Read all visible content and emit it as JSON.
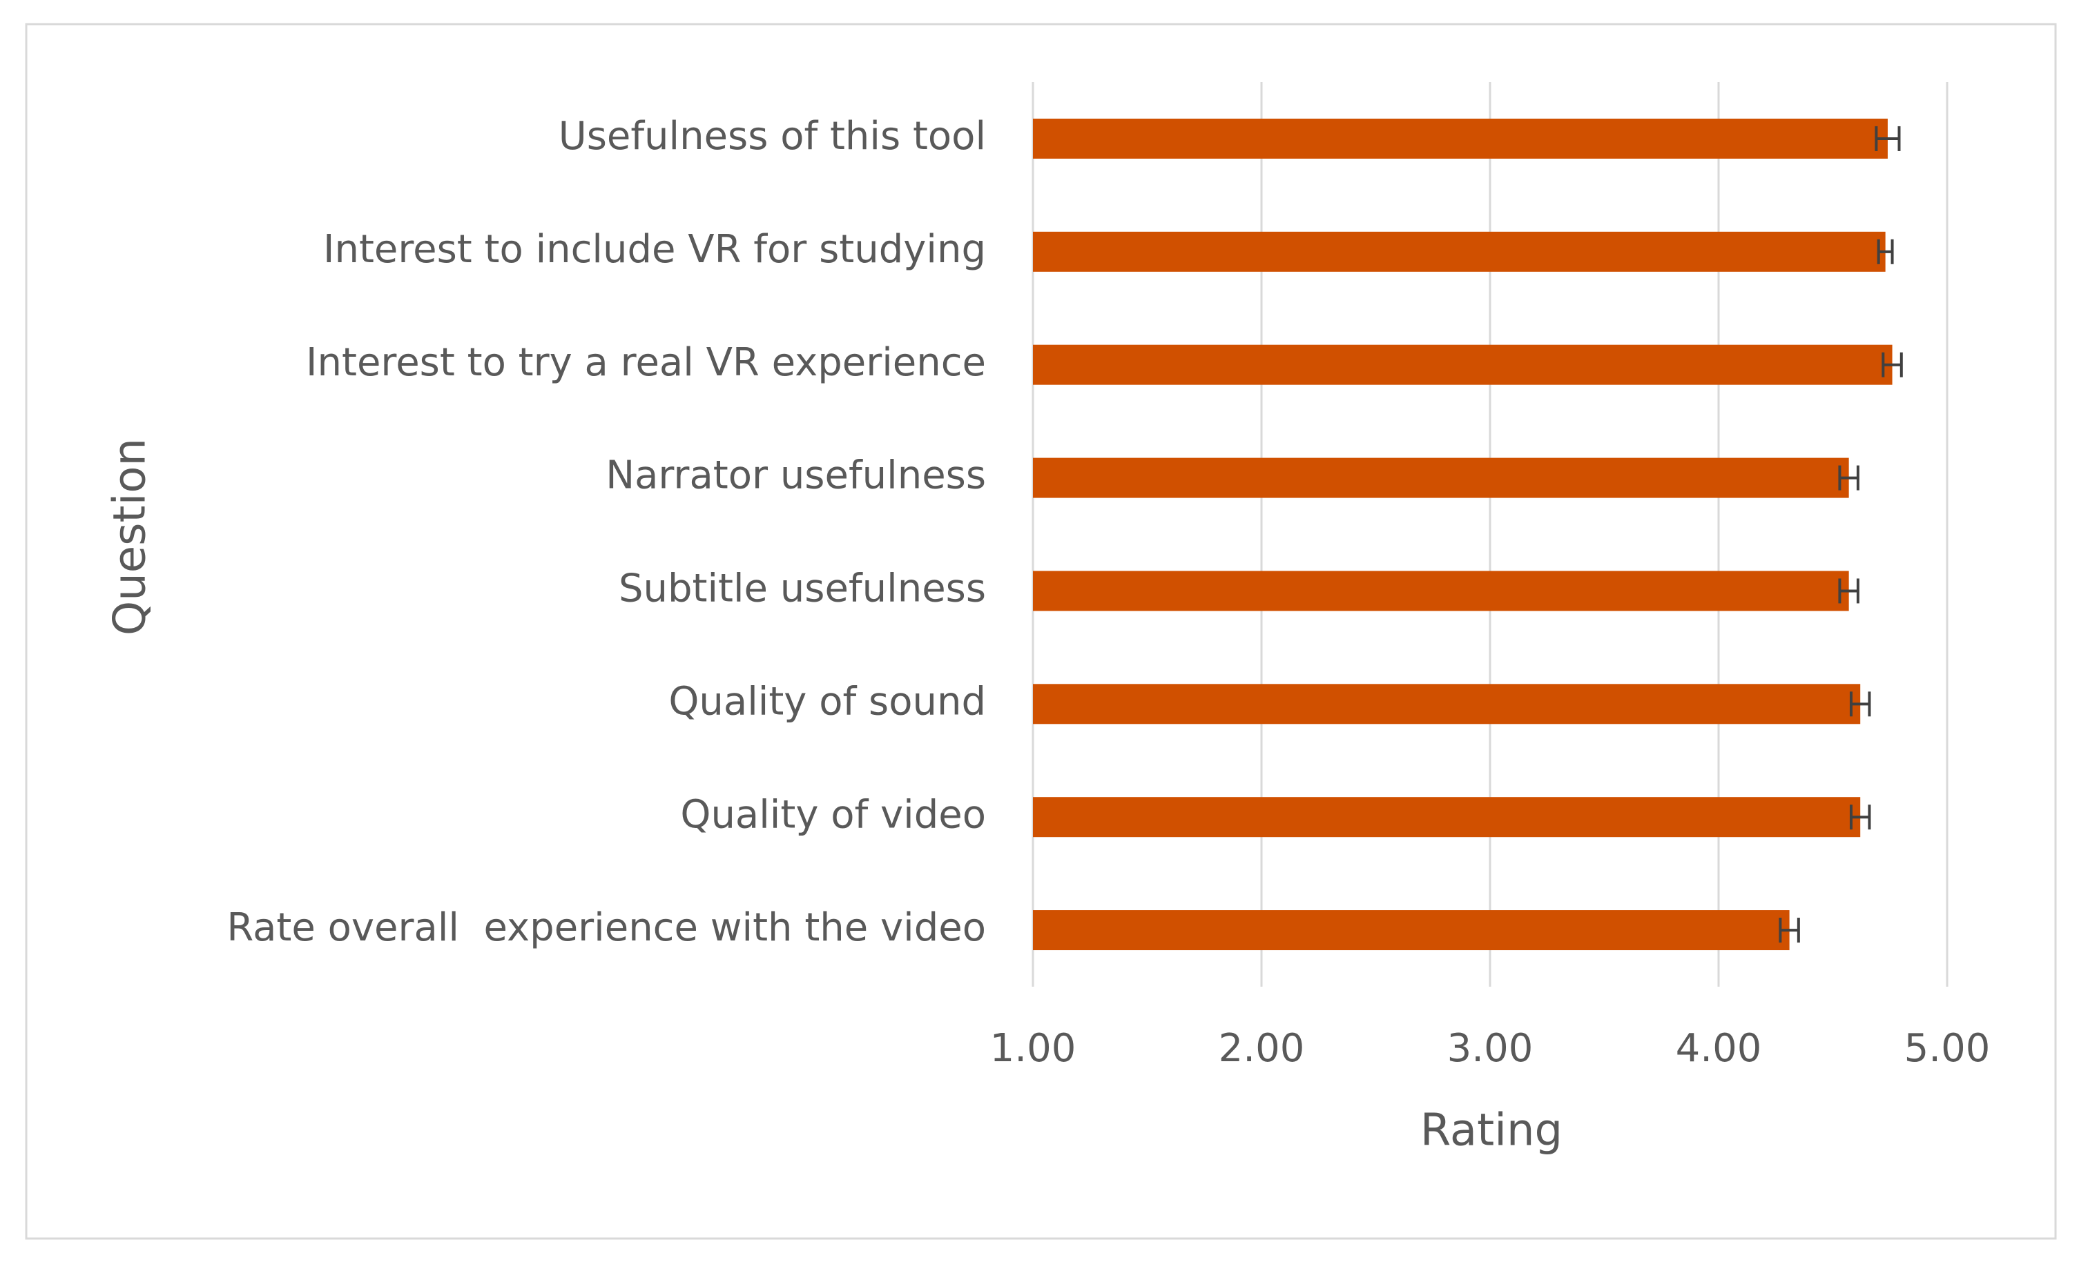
{
  "chart_data": {
    "type": "hbar",
    "x_label": "Rating",
    "y_label": "Question",
    "categories": [
      "Usefulness of this tool",
      "Interest to include VR for studying",
      "Interest to try a real VR experience",
      "Narrator usefulness",
      "Subtitle usefulness",
      "Quality of sound",
      "Quality of video",
      "Rate overall  experience with the video"
    ],
    "values": [
      4.74,
      4.73,
      4.76,
      4.57,
      4.57,
      4.62,
      4.62,
      4.31
    ],
    "errors": [
      0.05,
      0.03,
      0.04,
      0.04,
      0.04,
      0.04,
      0.04,
      0.04
    ],
    "color": "#d05000",
    "xlim": [
      1,
      5
    ],
    "xticks": [
      {
        "value": 1,
        "label": "1.00"
      },
      {
        "value": 2,
        "label": "2.00"
      },
      {
        "value": 3,
        "label": "3.00"
      },
      {
        "value": 4,
        "label": "4.00"
      },
      {
        "value": 5,
        "label": "5.00"
      }
    ],
    "grid": true
  }
}
